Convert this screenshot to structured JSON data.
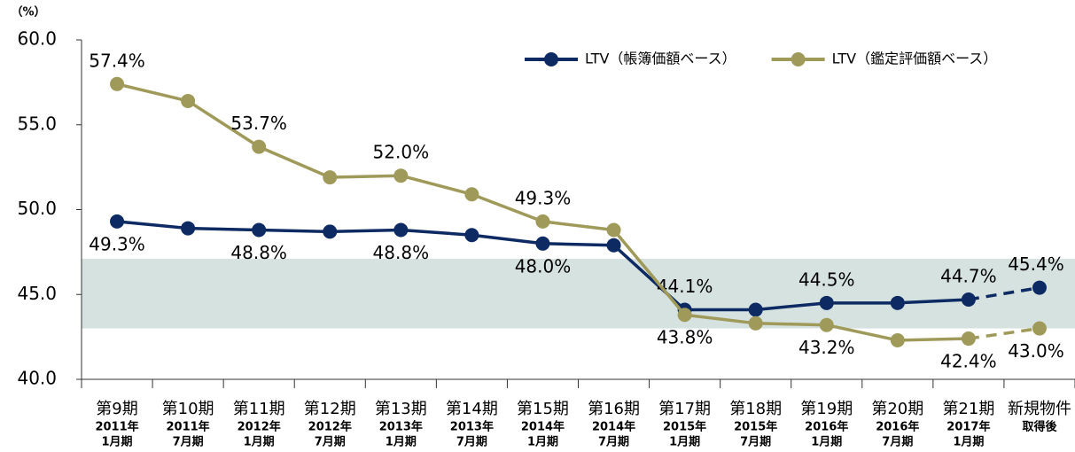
{
  "chart_data": {
    "type": "line",
    "y_unit_label": "（%）",
    "categories": [
      [
        "第9期",
        "2011年",
        "1月期"
      ],
      [
        "第10期",
        "2011年",
        "7月期"
      ],
      [
        "第11期",
        "2012年",
        "1月期"
      ],
      [
        "第12期",
        "2012年",
        "7月期"
      ],
      [
        "第13期",
        "2013年",
        "1月期"
      ],
      [
        "第14期",
        "2013年",
        "7月期"
      ],
      [
        "第15期",
        "2014年",
        "1月期"
      ],
      [
        "第16期",
        "2014年",
        "7月期"
      ],
      [
        "第17期",
        "2015年",
        "1月期"
      ],
      [
        "第18期",
        "2015年",
        "7月期"
      ],
      [
        "第19期",
        "2016年",
        "1月期"
      ],
      [
        "第20期",
        "2016年",
        "7月期"
      ],
      [
        "第21期",
        "2017年",
        "1月期"
      ],
      [
        "新規物件",
        "取得後"
      ]
    ],
    "series": [
      {
        "name": "LTV（帳簿価額ベース）",
        "color": "#0d2a63",
        "values": [
          49.3,
          48.9,
          48.8,
          48.7,
          48.8,
          48.5,
          48.0,
          47.9,
          44.1,
          44.1,
          44.5,
          44.5,
          44.7,
          45.4
        ],
        "value_labels": [
          "49.3%",
          null,
          "48.8%",
          null,
          "48.8%",
          null,
          "48.0%",
          null,
          "44.1%",
          null,
          "44.5%",
          null,
          "44.7%",
          "45.4%"
        ]
      },
      {
        "name": "LTV（鑑定評価額ベース）",
        "color": "#a09a5a",
        "values": [
          57.4,
          56.4,
          53.7,
          51.9,
          52.0,
          50.9,
          49.3,
          48.8,
          43.8,
          43.3,
          43.2,
          42.3,
          42.4,
          43.0
        ],
        "value_labels": [
          "57.4%",
          null,
          "53.7%",
          null,
          "52.0%",
          null,
          "49.3%",
          null,
          "43.8%",
          null,
          "43.2%",
          null,
          "42.4%",
          "43.0%"
        ]
      }
    ],
    "dashed_last_segment": true,
    "shaded_range": [
      43.0,
      47.1
    ],
    "shaded_color": "#d6e2df",
    "ylim": [
      40,
      60
    ],
    "yticks": [
      {
        "value": 40,
        "label": "40.0"
      },
      {
        "value": 45,
        "label": "45.0"
      },
      {
        "value": 50,
        "label": "50.0"
      },
      {
        "value": 55,
        "label": "55.0"
      },
      {
        "value": 60,
        "label": "60.0"
      }
    ],
    "legend": "top-right"
  }
}
